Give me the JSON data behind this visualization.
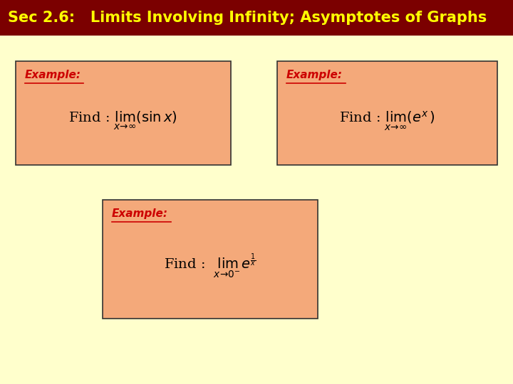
{
  "title": "Sec 2.6:   Limits Involving Infinity; Asymptotes of Graphs",
  "title_bg_color": "#7B0000",
  "title_text_color": "#FFFF00",
  "bg_color": "#FFFFCC",
  "box_bg_color": "#F4A97A",
  "box_edge_color": "#333333",
  "example_label_color": "#CC0000",
  "example_label": "Example:",
  "box1_formula": "Find : $\\lim_{x \\to \\infty}(\\sin x)$",
  "box2_formula": "Find : $\\lim_{x \\to \\infty}(e^{x})$",
  "box3_formula": "Find :  $\\lim_{x \\to 0^{-}} e^{\\frac{1}{x}}$"
}
